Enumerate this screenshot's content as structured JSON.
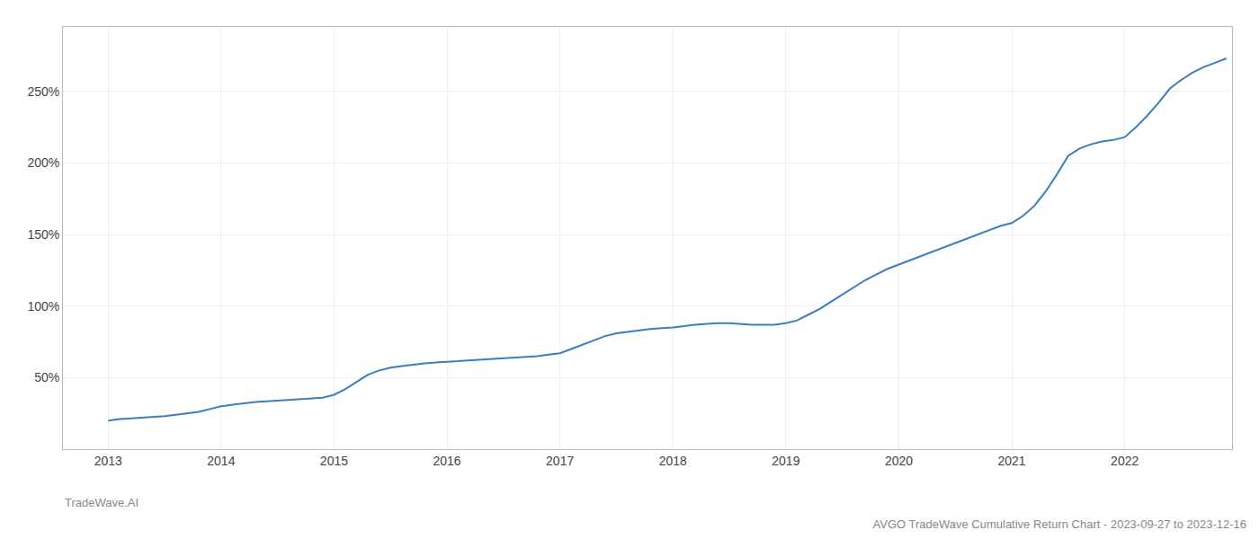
{
  "chart_data": {
    "type": "line",
    "title": "AVGO TradeWave Cumulative Return Chart - 2023-09-27 to 2023-12-16",
    "annotations": [
      "TradeWave.AI"
    ],
    "color": "#3a7ebf",
    "grid": true,
    "x": [
      2013.0,
      2013.1,
      2013.2,
      2013.3,
      2013.4,
      2013.5,
      2013.6,
      2013.7,
      2013.8,
      2013.9,
      2014.0,
      2014.1,
      2014.2,
      2014.3,
      2014.4,
      2014.5,
      2014.6,
      2014.7,
      2014.8,
      2014.9,
      2015.0,
      2015.1,
      2015.2,
      2015.3,
      2015.4,
      2015.5,
      2015.6,
      2015.7,
      2015.8,
      2015.9,
      2016.0,
      2016.1,
      2016.2,
      2016.3,
      2016.4,
      2016.5,
      2016.6,
      2016.7,
      2016.8,
      2016.9,
      2017.0,
      2017.1,
      2017.2,
      2017.3,
      2017.4,
      2017.5,
      2017.6,
      2017.7,
      2017.8,
      2017.9,
      2018.0,
      2018.1,
      2018.2,
      2018.3,
      2018.4,
      2018.5,
      2018.6,
      2018.7,
      2018.8,
      2018.9,
      2019.0,
      2019.1,
      2019.2,
      2019.3,
      2019.4,
      2019.5,
      2019.6,
      2019.7,
      2019.8,
      2019.9,
      2020.0,
      2020.1,
      2020.2,
      2020.3,
      2020.4,
      2020.5,
      2020.6,
      2020.7,
      2020.8,
      2020.9,
      2021.0,
      2021.1,
      2021.2,
      2021.3,
      2021.4,
      2021.5,
      2021.6,
      2021.7,
      2021.8,
      2021.9,
      2022.0,
      2022.1,
      2022.2,
      2022.3,
      2022.4,
      2022.5,
      2022.6,
      2022.7,
      2022.8,
      2022.9
    ],
    "values": [
      20,
      21,
      21.5,
      22,
      22.5,
      23,
      24,
      25,
      26,
      28,
      30,
      31,
      32,
      33,
      33.5,
      34,
      34.5,
      35,
      35.5,
      36,
      38,
      42,
      47,
      52,
      55,
      57,
      58,
      59,
      60,
      60.5,
      61,
      61.5,
      62,
      62.5,
      63,
      63.5,
      64,
      64.5,
      65,
      66,
      67,
      70,
      73,
      76,
      79,
      81,
      82,
      83,
      84,
      84.5,
      85,
      86,
      87,
      87.5,
      88,
      88,
      87.5,
      87,
      87,
      87,
      88,
      90,
      94,
      98,
      103,
      108,
      113,
      118,
      122,
      126,
      129,
      132,
      135,
      138,
      141,
      144,
      147,
      150,
      153,
      156,
      158,
      163,
      170,
      180,
      192,
      205,
      210,
      213,
      215,
      216,
      218,
      225,
      233,
      242,
      252,
      258,
      263,
      267,
      270,
      273
    ],
    "xlim": [
      2012.6,
      2022.95
    ],
    "xticks": [
      2013,
      2014,
      2015,
      2016,
      2017,
      2018,
      2019,
      2020,
      2021,
      2022
    ],
    "ylim": [
      0,
      295
    ],
    "yticks": [
      {
        "value": 50,
        "label": "50%"
      },
      {
        "value": 100,
        "label": "100%"
      },
      {
        "value": 150,
        "label": "150%"
      },
      {
        "value": 200,
        "label": "200%"
      },
      {
        "value": 250,
        "label": "250%"
      }
    ]
  }
}
